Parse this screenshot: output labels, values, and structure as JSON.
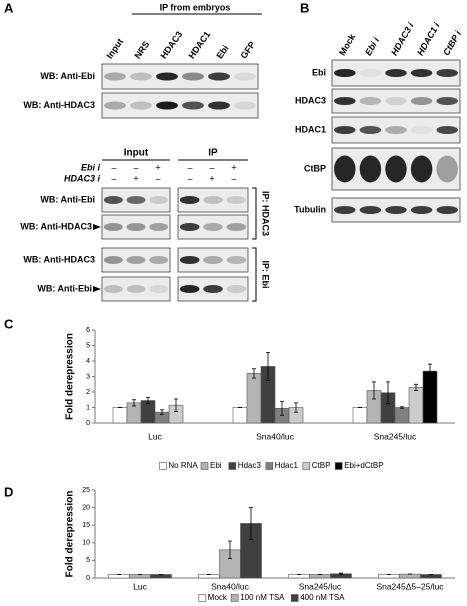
{
  "panel_a": {
    "label": "A",
    "ip_header": "IP from embryos",
    "lanes": [
      "Input",
      "NRS",
      "HDAC3",
      "HDAC1",
      "Ebi",
      "GFP"
    ],
    "rows": [
      "WB: Anti-Ebi",
      "WB: Anti-HDAC3"
    ],
    "lower": {
      "groups": [
        "Input",
        "IP"
      ],
      "conditions": [
        {
          "name": "Ebi i",
          "signs": [
            "–",
            "–",
            "+",
            "–",
            "–",
            "+"
          ]
        },
        {
          "name": "HDAC3 i",
          "signs": [
            "–",
            "+",
            "–",
            "–",
            "+",
            "–"
          ]
        }
      ],
      "rows": [
        "WB: Anti-Ebi",
        "WB: Anti-HDAC3",
        "WB: Anti-HDAC3",
        "WB: Anti-Ebi"
      ],
      "ip_labels": [
        "IP: HDAC3",
        "IP: Ebi"
      ]
    }
  },
  "panel_b": {
    "label": "B",
    "lanes": [
      "Mock",
      "Ebi i",
      "HDAC3 i",
      "HDAC1 i",
      "CtBP i"
    ],
    "rows": [
      "Ebi",
      "HDAC3",
      "HDAC1",
      "CtBP",
      "Tubulin"
    ]
  },
  "chart_data": [
    {
      "type": "bar",
      "label": "C",
      "y_label": "Fold derepression",
      "categories": [
        "Luc",
        "Sna40/luc",
        "Sna245/luc"
      ],
      "series": [
        {
          "name": "No RNA",
          "color": "#ffffff",
          "values": [
            1,
            1,
            1
          ],
          "errors": [
            0,
            0,
            0
          ]
        },
        {
          "name": "Ebi",
          "color": "#b4b4b4",
          "values": [
            1.3,
            3.2,
            2.1
          ],
          "errors": [
            0.2,
            0.3,
            0.55
          ]
        },
        {
          "name": "Hdac3",
          "color": "#404040",
          "values": [
            1.45,
            3.65,
            1.95
          ],
          "errors": [
            0.2,
            0.9,
            0.7
          ]
        },
        {
          "name": "Hdac1",
          "color": "#808080",
          "values": [
            0.7,
            0.95,
            1.0
          ],
          "errors": [
            0.15,
            0.45,
            0.05
          ]
        },
        {
          "name": "CtBP",
          "color": "#cccccc",
          "values": [
            1.15,
            1.0,
            2.3
          ],
          "errors": [
            0.4,
            0.3,
            0.2
          ]
        },
        {
          "name": "Ebi+dCtBP",
          "color": "#000000",
          "values": [
            null,
            null,
            3.35
          ],
          "errors": [
            null,
            null,
            0.45
          ]
        }
      ],
      "ylim": [
        0,
        6
      ],
      "yticks": [
        0,
        1,
        2,
        3,
        4,
        5,
        6
      ],
      "grid": false
    },
    {
      "type": "bar",
      "label": "D",
      "y_label": "Fold derepression",
      "categories": [
        "Luc",
        "Sna40/luc",
        "Sna245/luc",
        "Sna245Δ5–25/luc"
      ],
      "series": [
        {
          "name": "Mock",
          "color": "#ffffff",
          "values": [
            1,
            1,
            1,
            1
          ],
          "errors": [
            0,
            0,
            0,
            0
          ]
        },
        {
          "name": "100 nM TSA",
          "color": "#b4b4b4",
          "values": [
            1,
            8,
            1,
            1.1
          ],
          "errors": [
            0,
            2.5,
            0,
            0
          ]
        },
        {
          "name": "400 nM TSA",
          "color": "#404040",
          "values": [
            1,
            15.5,
            1.2,
            1
          ],
          "errors": [
            0,
            4.5,
            0.2,
            0
          ]
        }
      ],
      "ylim": [
        0,
        25
      ],
      "yticks": [
        0,
        5,
        10,
        15,
        20,
        25
      ],
      "grid": false
    }
  ]
}
